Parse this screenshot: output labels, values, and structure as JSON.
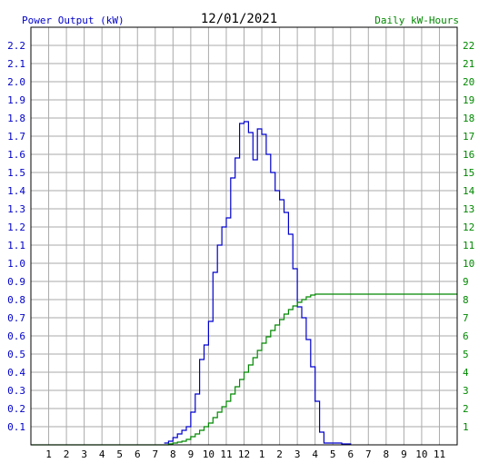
{
  "chart_data": {
    "type": "line",
    "title": "12/01/2021",
    "ylabel_left": "Power Output (kW)",
    "ylabel_right": "Daily kW-Hours",
    "ylim_left": [
      0,
      2.3
    ],
    "ylim_right": [
      0,
      23
    ],
    "left_ticks": [
      "0.1",
      "0.2",
      "0.3",
      "0.4",
      "0.5",
      "0.6",
      "0.7",
      "0.8",
      "0.9",
      "1.0",
      "1.1",
      "1.2",
      "1.3",
      "1.4",
      "1.5",
      "1.6",
      "1.7",
      "1.8",
      "1.9",
      "2.0",
      "2.1",
      "2.2"
    ],
    "right_ticks": [
      "1",
      "2",
      "3",
      "4",
      "5",
      "6",
      "7",
      "8",
      "9",
      "10",
      "11",
      "12",
      "13",
      "14",
      "15",
      "16",
      "17",
      "18",
      "19",
      "20",
      "21",
      "22"
    ],
    "x_ticks": [
      "1",
      "2",
      "3",
      "4",
      "5",
      "6",
      "7",
      "8",
      "9",
      "10",
      "11",
      "12",
      "1",
      "2",
      "3",
      "4",
      "5",
      "6",
      "7",
      "8",
      "9",
      "10",
      "11"
    ],
    "xlim_hours": [
      0,
      24
    ],
    "grid": true,
    "series": [
      {
        "name": "Power Output (kW)",
        "color": "#0000cc",
        "x_hours": [
          7.5,
          7.75,
          8.0,
          8.25,
          8.5,
          8.75,
          9.0,
          9.25,
          9.5,
          9.75,
          10.0,
          10.25,
          10.5,
          10.75,
          11.0,
          11.25,
          11.5,
          11.75,
          12.0,
          12.25,
          12.5,
          12.75,
          13.0,
          13.25,
          13.5,
          13.75,
          14.0,
          14.25,
          14.5,
          14.75,
          15.0,
          15.25,
          15.5,
          15.75,
          16.0,
          16.25,
          16.5,
          16.75,
          17.0,
          17.25,
          17.5,
          17.75,
          18.0
        ],
        "values": [
          0.01,
          0.02,
          0.04,
          0.06,
          0.08,
          0.1,
          0.18,
          0.28,
          0.47,
          0.55,
          0.68,
          0.95,
          1.1,
          1.2,
          1.25,
          1.47,
          1.58,
          1.77,
          1.78,
          1.72,
          1.57,
          1.74,
          1.71,
          1.6,
          1.5,
          1.4,
          1.35,
          1.28,
          1.16,
          0.97,
          0.76,
          0.7,
          0.58,
          0.43,
          0.24,
          0.07,
          0.01,
          0.01,
          0.01,
          0.01,
          0.005,
          0.005,
          0.0
        ]
      },
      {
        "name": "Daily kW-Hours",
        "color": "#008800",
        "x_hours": [
          0,
          7.75,
          8.0,
          8.25,
          8.5,
          8.75,
          9.0,
          9.25,
          9.5,
          9.75,
          10.0,
          10.25,
          10.5,
          10.75,
          11.0,
          11.25,
          11.5,
          11.75,
          12.0,
          12.25,
          12.5,
          12.75,
          13.0,
          13.25,
          13.5,
          13.75,
          14.0,
          14.25,
          14.5,
          14.75,
          15.0,
          15.25,
          15.5,
          15.75,
          16.0,
          16.25,
          16.5,
          16.75,
          17.0,
          17.25,
          24.0
        ],
        "values": [
          0,
          0.05,
          0.1,
          0.15,
          0.2,
          0.3,
          0.45,
          0.6,
          0.8,
          1.0,
          1.2,
          1.5,
          1.8,
          2.1,
          2.4,
          2.8,
          3.2,
          3.6,
          4.0,
          4.4,
          4.8,
          5.2,
          5.6,
          5.95,
          6.3,
          6.6,
          6.9,
          7.2,
          7.45,
          7.65,
          7.85,
          8.0,
          8.15,
          8.25,
          8.3,
          8.3,
          8.3,
          8.3,
          8.3,
          8.3,
          8.3
        ]
      }
    ]
  }
}
